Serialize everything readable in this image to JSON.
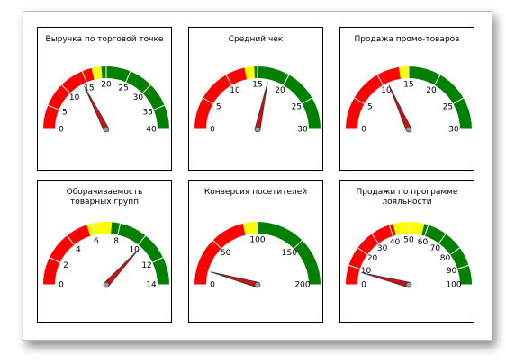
{
  "gauges": [
    {
      "title": "Выручка по торговой точке",
      "lim": [
        0,
        40
      ],
      "ticks": [
        0,
        5,
        10,
        15,
        20,
        25,
        30,
        35,
        40
      ],
      "value": 14,
      "zones": [
        {
          "from": 0,
          "to": 17,
          "color": "#ff0000"
        },
        {
          "from": 17,
          "to": 19,
          "color": "#ffff00"
        },
        {
          "from": 19,
          "to": 40,
          "color": "#008000"
        }
      ]
    },
    {
      "title": "Средний чек",
      "lim": [
        0,
        30
      ],
      "ticks": [
        0,
        5,
        10,
        15,
        20,
        25,
        30
      ],
      "value": 17,
      "zones": [
        {
          "from": 0,
          "to": 13,
          "color": "#ff0000"
        },
        {
          "from": 13,
          "to": 14.5,
          "color": "#ffff00"
        },
        {
          "from": 14.5,
          "to": 30,
          "color": "#008000"
        }
      ]
    },
    {
      "title": "Продажа промо-товаров",
      "lim": [
        0,
        30
      ],
      "ticks": [
        0,
        5,
        10,
        15,
        20,
        25,
        30
      ],
      "value": 11,
      "zones": [
        {
          "from": 0,
          "to": 13.5,
          "color": "#ff0000"
        },
        {
          "from": 13.5,
          "to": 15,
          "color": "#ffff00"
        },
        {
          "from": 15,
          "to": 30,
          "color": "#008000"
        }
      ]
    },
    {
      "title": "Оборачиваемость товарных групп",
      "lim": [
        0,
        14
      ],
      "ticks": [
        0,
        2,
        4,
        6,
        8,
        10,
        12,
        14
      ],
      "value": 10.3,
      "zones": [
        {
          "from": 0,
          "to": 5.6,
          "color": "#ff0000"
        },
        {
          "from": 5.6,
          "to": 7.4,
          "color": "#ffff00"
        },
        {
          "from": 7.4,
          "to": 14,
          "color": "#008000"
        }
      ]
    },
    {
      "title": "Конверсия посетителей",
      "lim": [
        0,
        200
      ],
      "ticks": [
        0,
        50,
        100,
        150,
        200
      ],
      "value": 17,
      "zones": [
        {
          "from": 0,
          "to": 85,
          "color": "#ff0000"
        },
        {
          "from": 85,
          "to": 100,
          "color": "#ffff00"
        },
        {
          "from": 100,
          "to": 200,
          "color": "#008000"
        }
      ]
    },
    {
      "title": "Продажи по программе лояльности",
      "lim": [
        0,
        100
      ],
      "ticks": [
        0,
        10,
        20,
        30,
        40,
        50,
        60,
        70,
        80,
        90,
        100
      ],
      "value": 8,
      "zones": [
        {
          "from": 0,
          "to": 42,
          "color": "#ff0000"
        },
        {
          "from": 42,
          "to": 58,
          "color": "#ffff00"
        },
        {
          "from": 58,
          "to": 100,
          "color": "#008000"
        }
      ]
    }
  ]
}
